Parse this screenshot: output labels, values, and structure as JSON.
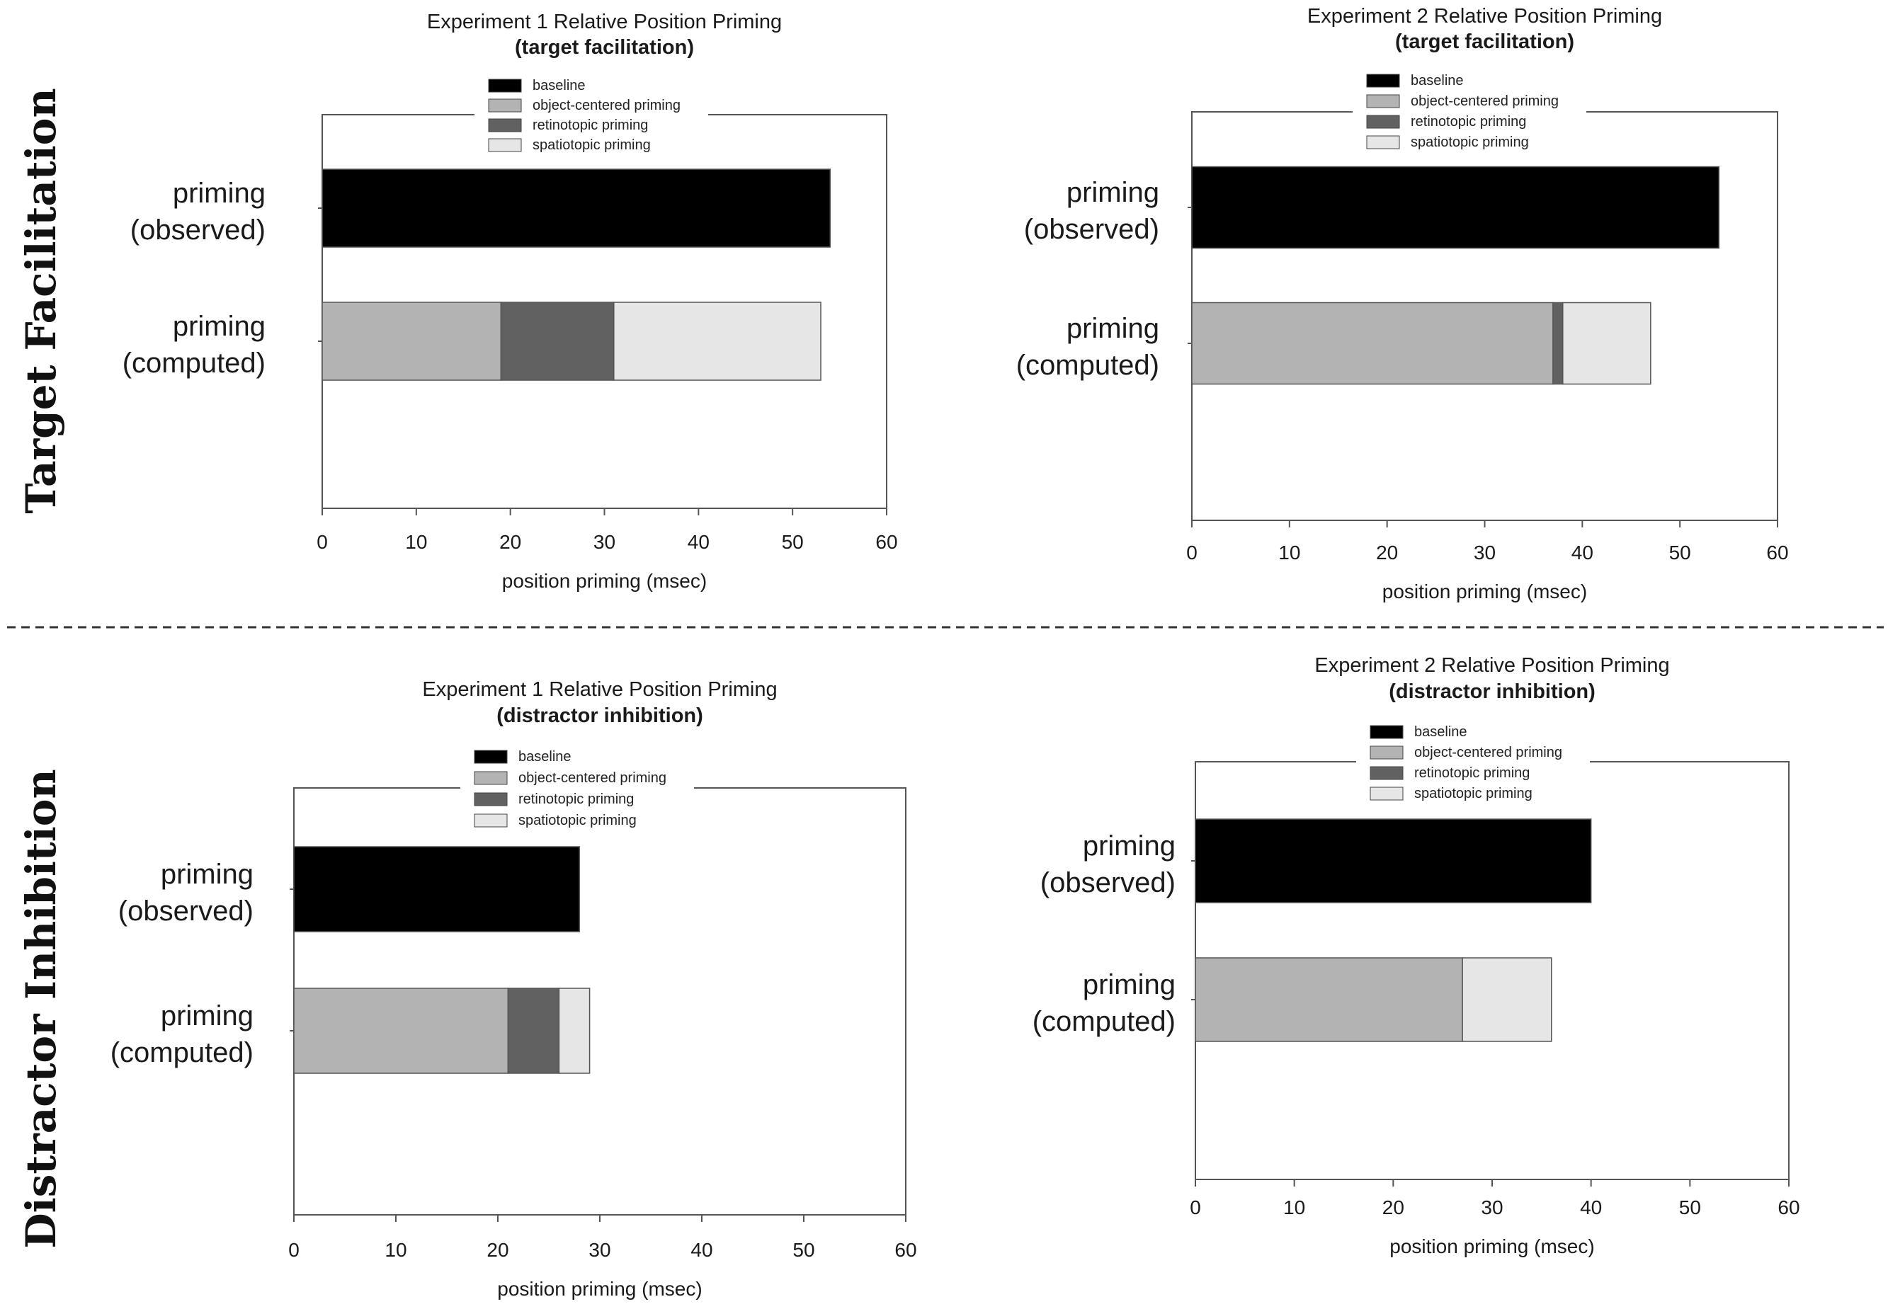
{
  "figure": {
    "row_labels": [
      "Target Facilitation",
      "Distractor Inhibition"
    ]
  },
  "colors": {
    "baseline": "#000000",
    "object-centered priming": "#b3b3b3",
    "retinotopic priming": "#616161",
    "spatiotopic priming": "#e6e6e6",
    "axis": "#555555",
    "divider": "#333333"
  },
  "chart_data": [
    {
      "type": "bar",
      "orientation": "horizontal",
      "stacked": true,
      "title": "Experiment 1 Relative Position Priming",
      "subtitle": "(target facilitation)",
      "xlabel": "position priming (msec)",
      "ylabel": "",
      "xlim": [
        0,
        60
      ],
      "xticks": [
        0,
        10,
        20,
        30,
        40,
        50,
        60
      ],
      "legend": [
        "baseline",
        "object-centered priming",
        "retinotopic priming",
        "spatiotopic priming"
      ],
      "legend_position": "top-center",
      "categories": [
        {
          "line1": "priming",
          "line2": "(observed)"
        },
        {
          "line1": "priming",
          "line2": "(computed)"
        }
      ],
      "series": [
        {
          "name": "baseline",
          "values": [
            54,
            0
          ]
        },
        {
          "name": "object-centered priming",
          "values": [
            0,
            19
          ]
        },
        {
          "name": "retinotopic priming",
          "values": [
            0,
            12
          ]
        },
        {
          "name": "spatiotopic priming",
          "values": [
            0,
            22
          ]
        }
      ]
    },
    {
      "type": "bar",
      "orientation": "horizontal",
      "stacked": true,
      "title": "Experiment 2 Relative Position Priming",
      "subtitle": "(target facilitation)",
      "xlabel": "position priming (msec)",
      "ylabel": "",
      "xlim": [
        0,
        60
      ],
      "xticks": [
        0,
        10,
        20,
        30,
        40,
        50,
        60
      ],
      "legend": [
        "baseline",
        "object-centered priming",
        "retinotopic priming",
        "spatiotopic priming"
      ],
      "legend_position": "top-center",
      "categories": [
        {
          "line1": "priming",
          "line2": "(observed)"
        },
        {
          "line1": "priming",
          "line2": "(computed)"
        }
      ],
      "series": [
        {
          "name": "baseline",
          "values": [
            54,
            0
          ]
        },
        {
          "name": "object-centered priming",
          "values": [
            0,
            37
          ]
        },
        {
          "name": "retinotopic priming",
          "values": [
            0,
            1
          ]
        },
        {
          "name": "spatiotopic priming",
          "values": [
            0,
            9
          ]
        }
      ]
    },
    {
      "type": "bar",
      "orientation": "horizontal",
      "stacked": true,
      "title": "Experiment 1 Relative Position Priming",
      "subtitle": "(distractor inhibition)",
      "xlabel": "position priming (msec)",
      "ylabel": "",
      "xlim": [
        0,
        60
      ],
      "xticks": [
        0,
        10,
        20,
        30,
        40,
        50,
        60
      ],
      "legend": [
        "baseline",
        "object-centered priming",
        "retinotopic priming",
        "spatiotopic priming"
      ],
      "legend_position": "top-center",
      "categories": [
        {
          "line1": "priming",
          "line2": "(observed)"
        },
        {
          "line1": "priming",
          "line2": "(computed)"
        }
      ],
      "series": [
        {
          "name": "baseline",
          "values": [
            28,
            0
          ]
        },
        {
          "name": "object-centered priming",
          "values": [
            0,
            21
          ]
        },
        {
          "name": "retinotopic priming",
          "values": [
            0,
            5
          ]
        },
        {
          "name": "spatiotopic priming",
          "values": [
            0,
            3
          ]
        }
      ]
    },
    {
      "type": "bar",
      "orientation": "horizontal",
      "stacked": true,
      "title": "Experiment 2 Relative Position Priming",
      "subtitle": "(distractor inhibition)",
      "xlabel": "position priming (msec)",
      "ylabel": "",
      "xlim": [
        0,
        60
      ],
      "xticks": [
        0,
        10,
        20,
        30,
        40,
        50,
        60
      ],
      "legend": [
        "baseline",
        "object-centered priming",
        "retinotopic priming",
        "spatiotopic priming"
      ],
      "legend_position": "top-center",
      "categories": [
        {
          "line1": "priming",
          "line2": "(observed)"
        },
        {
          "line1": "priming",
          "line2": "(computed)"
        }
      ],
      "series": [
        {
          "name": "baseline",
          "values": [
            40,
            0
          ]
        },
        {
          "name": "object-centered priming",
          "values": [
            0,
            27
          ]
        },
        {
          "name": "retinotopic priming",
          "values": [
            0,
            0
          ]
        },
        {
          "name": "spatiotopic priming",
          "values": [
            0,
            9
          ]
        }
      ]
    }
  ]
}
